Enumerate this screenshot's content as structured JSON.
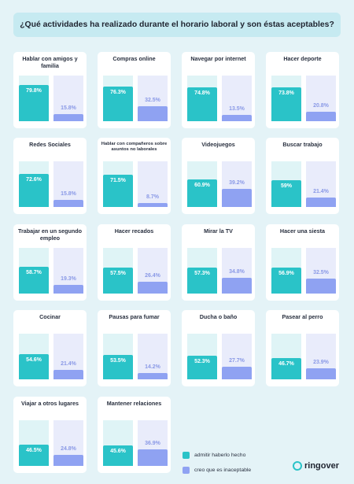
{
  "title": "¿Qué actividades ha realizado durante el horario laboral y son éstas aceptables?",
  "legend": {
    "done": "admitir haberlo hecho",
    "unacceptable": "creo que es inaceptable"
  },
  "logo": "ringover",
  "colors": {
    "done": "#2ac3c8",
    "unacceptable": "#8fa2f2",
    "background": "#e4f3f7"
  },
  "chart_data": {
    "type": "bar",
    "ylim": [
      0,
      100
    ],
    "series_names": [
      "admitir haberlo hecho",
      "creo que es inaceptable"
    ],
    "categories": [
      {
        "label": "Hablar con amigos y familia",
        "done": 79.8,
        "unacceptable": 15.8
      },
      {
        "label": "Compras online",
        "done": 76.3,
        "unacceptable": 32.5
      },
      {
        "label": "Navegar por internet",
        "done": 74.8,
        "unacceptable": 13.5
      },
      {
        "label": "Hacer deporte",
        "done": 73.8,
        "unacceptable": 20.8
      },
      {
        "label": "Redes Sociales",
        "done": 72.6,
        "unacceptable": 15.8
      },
      {
        "label": "Hablar con compañeros sobre asuntos no laborales",
        "done": 71.5,
        "unacceptable": 8.7
      },
      {
        "label": "Videojuegos",
        "done": 60.9,
        "unacceptable": 39.2
      },
      {
        "label": "Buscar trabajo",
        "done": 59,
        "unacceptable": 21.4
      },
      {
        "label": "Trabajar en un segundo empleo",
        "done": 58.7,
        "unacceptable": 19.3
      },
      {
        "label": "Hacer recados",
        "done": 57.5,
        "unacceptable": 26.4
      },
      {
        "label": "Mirar la TV",
        "done": 57.3,
        "unacceptable": 34.8
      },
      {
        "label": "Hacer una siesta",
        "done": 56.9,
        "unacceptable": 32.5
      },
      {
        "label": "Cocinar",
        "done": 54.6,
        "unacceptable": 21.4
      },
      {
        "label": "Pausas para fumar",
        "done": 53.5,
        "unacceptable": 14.2
      },
      {
        "label": "Ducha o baño",
        "done": 52.3,
        "unacceptable": 27.7
      },
      {
        "label": "Pasear al perro",
        "done": 46.7,
        "unacceptable": 23.9
      },
      {
        "label": "Viajar a otros lugares",
        "done": 46.5,
        "unacceptable": 24.8
      },
      {
        "label": "Mantener relaciones",
        "done": 45.6,
        "unacceptable": 36.9
      }
    ]
  }
}
